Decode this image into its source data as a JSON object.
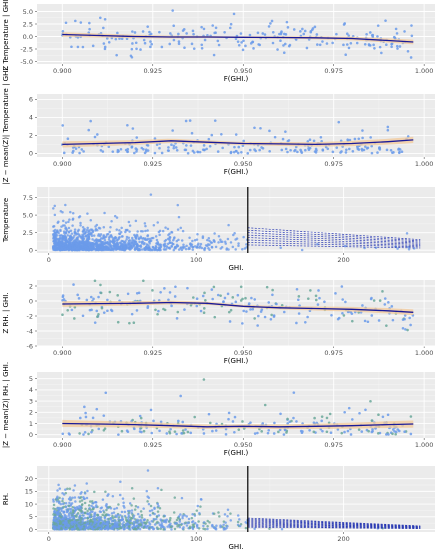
{
  "panels": [
    {
      "id": "p1",
      "type": "scatter",
      "xlabel": "F(GHI.)",
      "ylabel": "Z  Temperature | GHI.",
      "xlim": [
        0.893,
        1.003
      ],
      "ylim": [
        -5.5,
        6.5
      ],
      "xticks": [
        0.9,
        0.925,
        0.95,
        0.975,
        1.0
      ],
      "xtick_labels": [
        "0.900",
        "0.925",
        "0.950",
        "0.975",
        "1.000"
      ],
      "yticks": [
        -5.0,
        -2.5,
        0.0,
        2.5,
        5.0
      ],
      "ytick_labels": [
        "-5.0",
        "-2.5",
        "0.0",
        "2.5",
        "5.0"
      ],
      "smooth_x": [
        0.9,
        0.91,
        0.92,
        0.93,
        0.94,
        0.95,
        0.96,
        0.97,
        0.98,
        0.99,
        0.997
      ],
      "smooth_y": [
        0.4,
        0.2,
        0.0,
        -0.1,
        -0.1,
        -0.15,
        -0.2,
        -0.25,
        -0.4,
        -0.8,
        -1.1
      ]
    },
    {
      "id": "p2",
      "type": "scatter",
      "xlabel": "F(GHI.)",
      "ylabel": "|Z − mean(Z)|  Temperature | GHI.",
      "xlim": [
        0.893,
        1.003
      ],
      "ylim": [
        -0.4,
        6.6
      ],
      "xticks": [
        0.9,
        0.925,
        0.95,
        0.975,
        1.0
      ],
      "xtick_labels": [
        "0.900",
        "0.925",
        "0.950",
        "0.975",
        "1.000"
      ],
      "yticks": [
        0,
        2,
        4,
        6
      ],
      "ytick_labels": [
        "0",
        "2",
        "4",
        "6"
      ],
      "smooth_x": [
        0.9,
        0.91,
        0.92,
        0.93,
        0.94,
        0.95,
        0.96,
        0.97,
        0.98,
        0.99,
        0.997
      ],
      "smooth_y": [
        1.0,
        1.1,
        1.2,
        1.4,
        1.25,
        1.1,
        1.05,
        1.0,
        1.1,
        1.3,
        1.5
      ]
    },
    {
      "id": "p3",
      "type": "scatter",
      "xlabel": "GHI.",
      "ylabel": "Temperature",
      "xlim": [
        -8,
        262
      ],
      "ylim": [
        -0.4,
        9.0
      ],
      "xticks": [
        0,
        100,
        200
      ],
      "xtick_labels": [
        "0",
        "100",
        "200"
      ],
      "yticks": [
        0,
        2.5,
        5.0,
        7.5
      ],
      "ytick_labels": [
        "0",
        "2.5",
        "5.0",
        "7.5"
      ],
      "vline_x": 135
    },
    {
      "id": "p4",
      "type": "scatter",
      "xlabel": "F(GHI.)",
      "ylabel": "Z  RH. | GHI.",
      "xlim": [
        0.893,
        1.003
      ],
      "ylim": [
        -6.0,
        2.8
      ],
      "xticks": [
        0.9,
        0.925,
        0.95,
        0.975,
        1.0
      ],
      "xtick_labels": [
        "0.900",
        "0.925",
        "0.950",
        "0.975",
        "1.000"
      ],
      "yticks": [
        -6,
        -4,
        -2,
        0,
        2
      ],
      "ytick_labels": [
        "-6",
        "-4",
        "-2",
        "0",
        "2"
      ],
      "smooth_x": [
        0.9,
        0.91,
        0.92,
        0.93,
        0.94,
        0.95,
        0.96,
        0.97,
        0.98,
        0.99,
        0.997
      ],
      "smooth_y": [
        -0.4,
        -0.35,
        -0.3,
        -0.2,
        -0.3,
        -0.7,
        -0.9,
        -1.0,
        -1.1,
        -1.3,
        -1.5
      ]
    },
    {
      "id": "p5",
      "type": "scatter",
      "xlabel": "F(GHI.)",
      "ylabel": "|Z − mean(Z)|  RH. | GHI.",
      "xlim": [
        0.893,
        1.003
      ],
      "ylim": [
        -0.3,
        5.6
      ],
      "xticks": [
        0.9,
        0.925,
        0.95,
        0.975,
        1.0
      ],
      "xtick_labels": [
        "0.900",
        "0.925",
        "0.950",
        "0.975",
        "1.000"
      ],
      "yticks": [
        0,
        1,
        2,
        3,
        4,
        5
      ],
      "ytick_labels": [
        "0",
        "1",
        "2",
        "3",
        "4",
        "5"
      ],
      "smooth_x": [
        0.9,
        0.91,
        0.92,
        0.93,
        0.94,
        0.95,
        0.96,
        0.97,
        0.98,
        0.99,
        0.997
      ],
      "smooth_y": [
        1.0,
        0.95,
        0.9,
        0.8,
        0.7,
        0.75,
        0.7,
        0.75,
        0.8,
        0.9,
        0.95
      ]
    },
    {
      "id": "p6",
      "type": "scatter",
      "xlabel": "GHI.",
      "ylabel": "RH.",
      "xlim": [
        -8,
        262
      ],
      "ylim": [
        -1.0,
        25.0
      ],
      "xticks": [
        0,
        100,
        200
      ],
      "xtick_labels": [
        "0",
        "100",
        "200"
      ],
      "yticks": [
        0,
        5,
        10,
        15,
        20
      ],
      "ytick_labels": [
        "0",
        "5",
        "10",
        "15",
        "20"
      ],
      "vline_x": 135
    }
  ],
  "colors": {
    "panel_bg": "#ebebeb",
    "grid_major": "#ffffff",
    "points": "#6b9bea",
    "points_alt": "#6aa89a",
    "smooth_line": "#1a1a99",
    "ribbon": "#f3c99a",
    "vline": "#000000",
    "dashed": "#2a3ab3"
  }
}
